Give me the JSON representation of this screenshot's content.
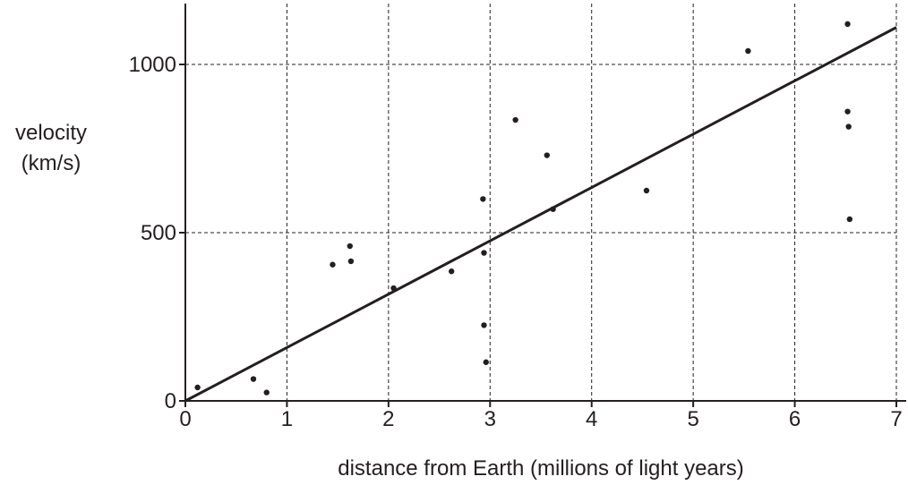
{
  "chart_data": {
    "type": "scatter",
    "title": "",
    "xlabel": "distance from Earth (millions of light years)",
    "ylabel_lines": [
      "velocity",
      "(km/s)"
    ],
    "xlim": [
      0,
      7
    ],
    "ylim": [
      0,
      1000
    ],
    "x_ticks": [
      0,
      1,
      2,
      3,
      4,
      5,
      6,
      7
    ],
    "y_ticks": [
      0,
      500,
      1000
    ],
    "grid": true,
    "grid_style": "dashed",
    "colors": {
      "points": "#231f20",
      "line": "#231f20",
      "axes": "#231f20",
      "grid": "#231f20"
    },
    "points": [
      {
        "x": 0.12,
        "y": 40
      },
      {
        "x": 0.67,
        "y": 65
      },
      {
        "x": 0.8,
        "y": 25
      },
      {
        "x": 1.45,
        "y": 405
      },
      {
        "x": 1.62,
        "y": 460
      },
      {
        "x": 1.63,
        "y": 415
      },
      {
        "x": 2.05,
        "y": 335
      },
      {
        "x": 2.62,
        "y": 385
      },
      {
        "x": 2.93,
        "y": 600
      },
      {
        "x": 2.94,
        "y": 440
      },
      {
        "x": 2.94,
        "y": 225
      },
      {
        "x": 2.96,
        "y": 115
      },
      {
        "x": 3.25,
        "y": 835
      },
      {
        "x": 3.56,
        "y": 730
      },
      {
        "x": 3.62,
        "y": 570
      },
      {
        "x": 4.54,
        "y": 625
      },
      {
        "x": 5.54,
        "y": 1040
      },
      {
        "x": 6.52,
        "y": 1120
      },
      {
        "x": 6.52,
        "y": 860
      },
      {
        "x": 6.53,
        "y": 815
      },
      {
        "x": 6.54,
        "y": 540
      }
    ],
    "trend_line": {
      "x": [
        0,
        7
      ],
      "y": [
        0,
        1110
      ]
    }
  }
}
